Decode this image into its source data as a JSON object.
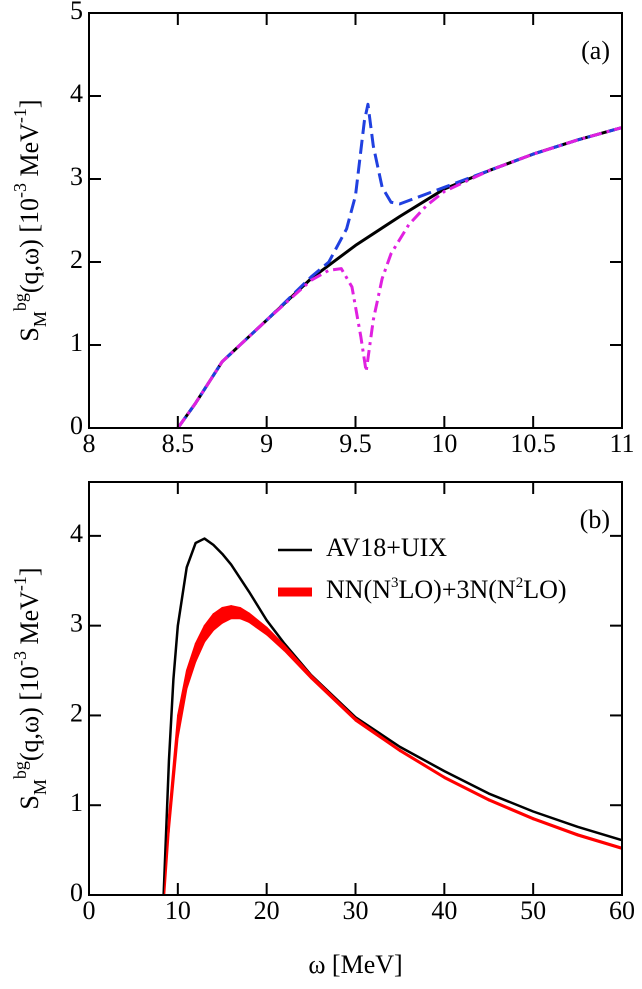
{
  "chart_data": [
    {
      "type": "line",
      "annotation": "(a)",
      "ylabel": [
        {
          "text": "S"
        },
        {
          "text": "M",
          "shift": "sub"
        },
        {
          "text": "bg",
          "shift": "super"
        },
        {
          "text": "(q,ω) [10"
        },
        {
          "text": "-3",
          "shift": "super"
        },
        {
          "text": " MeV"
        },
        {
          "text": "-1",
          "shift": "super"
        },
        {
          "text": "]"
        }
      ],
      "xlim": [
        8,
        11
      ],
      "ylim": [
        0,
        5
      ],
      "xticks": [
        8,
        8.5,
        9,
        9.5,
        10,
        10.5,
        11
      ],
      "yticks": [
        0,
        1,
        2,
        3,
        4,
        5
      ],
      "series": [
        {
          "color": "#000000",
          "dash": "solid",
          "x": [
            8.5,
            8.6,
            8.75,
            9,
            9.25,
            9.5,
            9.75,
            10,
            10.25,
            10.5,
            10.75,
            11
          ],
          "values": [
            0,
            0.3,
            0.8,
            1.3,
            1.8,
            2.2,
            2.55,
            2.88,
            3.1,
            3.3,
            3.47,
            3.62
          ]
        },
        {
          "color": "#2040e0",
          "dash": "dashed",
          "x": [
            8.5,
            8.6,
            8.75,
            9,
            9.25,
            9.35,
            9.45,
            9.5,
            9.55,
            9.57,
            9.6,
            9.65,
            9.7,
            9.75,
            9.85,
            10,
            10.25,
            10.5,
            10.75,
            11
          ],
          "values": [
            0,
            0.3,
            0.8,
            1.3,
            1.82,
            2.0,
            2.4,
            2.8,
            3.7,
            3.9,
            3.4,
            2.9,
            2.72,
            2.7,
            2.78,
            2.9,
            3.1,
            3.3,
            3.47,
            3.62
          ]
        },
        {
          "color": "#e020e0",
          "dash": "dashdot",
          "x": [
            8.5,
            8.6,
            8.75,
            9,
            9.25,
            9.35,
            9.42,
            9.48,
            9.53,
            9.56,
            9.6,
            9.65,
            9.7,
            9.8,
            9.9,
            10,
            10.25,
            10.5,
            10.75,
            11
          ],
          "values": [
            0,
            0.3,
            0.8,
            1.3,
            1.78,
            1.9,
            1.92,
            1.7,
            1.1,
            0.68,
            1.3,
            1.8,
            2.1,
            2.45,
            2.68,
            2.85,
            3.1,
            3.3,
            3.47,
            3.62
          ]
        }
      ]
    },
    {
      "type": "line",
      "annotation": "(b)",
      "ylabel": [
        {
          "text": "S"
        },
        {
          "text": "M",
          "shift": "sub"
        },
        {
          "text": "bg",
          "shift": "super"
        },
        {
          "text": "(q,ω) [10"
        },
        {
          "text": "-3",
          "shift": "super"
        },
        {
          "text": " MeV"
        },
        {
          "text": "-1",
          "shift": "super"
        },
        {
          "text": "]"
        }
      ],
      "xlabel": "ω [MeV]",
      "xlim": [
        0,
        60
      ],
      "ylim": [
        0,
        4.6
      ],
      "xticks": [
        0,
        10,
        20,
        30,
        40,
        50,
        60
      ],
      "yticks": [
        0,
        1,
        2,
        3,
        4
      ],
      "legend": "upper right",
      "series": [
        {
          "name": [
            {
              "text": "AV18+UIX"
            }
          ],
          "color": "#000000",
          "dash": "solid",
          "x": [
            8.4,
            9,
            9.5,
            10,
            11,
            12,
            13,
            14,
            15,
            16,
            18,
            20,
            22,
            25,
            30,
            35,
            40,
            45,
            50,
            55,
            60
          ],
          "values": [
            0,
            1.5,
            2.4,
            3.0,
            3.65,
            3.92,
            3.97,
            3.9,
            3.8,
            3.68,
            3.38,
            3.06,
            2.8,
            2.45,
            1.98,
            1.65,
            1.38,
            1.13,
            0.93,
            0.76,
            0.61
          ]
        },
        {
          "name": [
            {
              "text": "NN(N"
            },
            {
              "text": "3",
              "shift": "super"
            },
            {
              "text": "LO)+3N(N"
            },
            {
              "text": "2",
              "shift": "super"
            },
            {
              "text": "LO)"
            }
          ],
          "color": "#ff0000",
          "x": [
            8.5,
            9,
            10,
            11,
            12,
            13,
            14,
            15,
            16,
            17,
            18,
            20,
            22,
            25,
            30,
            35,
            40,
            45,
            50,
            55,
            60
          ],
          "upper": [
            0,
            0.9,
            2.0,
            2.5,
            2.8,
            3.0,
            3.13,
            3.2,
            3.22,
            3.2,
            3.14,
            2.98,
            2.78,
            2.45,
            1.97,
            1.62,
            1.32,
            1.07,
            0.86,
            0.68,
            0.53
          ],
          "lower": [
            0,
            0.7,
            1.75,
            2.3,
            2.6,
            2.82,
            2.95,
            3.03,
            3.08,
            3.08,
            3.04,
            2.9,
            2.72,
            2.41,
            1.94,
            1.6,
            1.3,
            1.05,
            0.84,
            0.66,
            0.51
          ]
        }
      ]
    }
  ]
}
